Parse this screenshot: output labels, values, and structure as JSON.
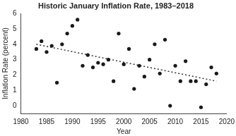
{
  "chart_data": {
    "type": "scatter",
    "title": "Historic January Inflation Rate, 1983–2018",
    "x_label": "Year",
    "y_label": "Inflation Rate (percent)",
    "series": [
      {
        "type": "scatter",
        "marker": "circle",
        "color": "#1a1a1a",
        "x": [
          1983,
          1984,
          1985,
          1986,
          1987,
          1988,
          1989,
          1990,
          1991,
          1992,
          1993,
          1994,
          1995,
          1996,
          1997,
          1998,
          1999,
          2000,
          2001,
          2002,
          2003,
          2004,
          2005,
          2006,
          2007,
          2008,
          2009,
          2010,
          2011,
          2012,
          2013,
          2014,
          2015,
          2016,
          2017,
          2018
        ],
        "values": [
          3.7,
          4.2,
          3.5,
          3.9,
          1.5,
          4.0,
          4.7,
          5.2,
          5.6,
          2.6,
          3.3,
          2.5,
          2.8,
          2.7,
          3.0,
          1.6,
          4.7,
          2.7,
          3.7,
          1.1,
          2.6,
          1.9,
          3.0,
          4.0,
          2.1,
          4.3,
          0.0,
          2.6,
          1.6,
          2.9,
          1.6,
          1.6,
          -0.1,
          1.4,
          2.5,
          2.1
        ]
      },
      {
        "type": "line",
        "line_style": "dotted",
        "color": "#333333",
        "x": [
          1983,
          2018
        ],
        "values": [
          4.0,
          1.6
        ]
      }
    ],
    "xlim": [
      1980,
      2020
    ],
    "xticks": [
      1980,
      1985,
      1990,
      1995,
      2000,
      2005,
      2010,
      2015,
      2020
    ],
    "ylim": [
      -0.5,
      6
    ],
    "yticks": [
      0,
      1,
      2,
      3,
      4,
      5,
      6
    ],
    "grid": false
  }
}
